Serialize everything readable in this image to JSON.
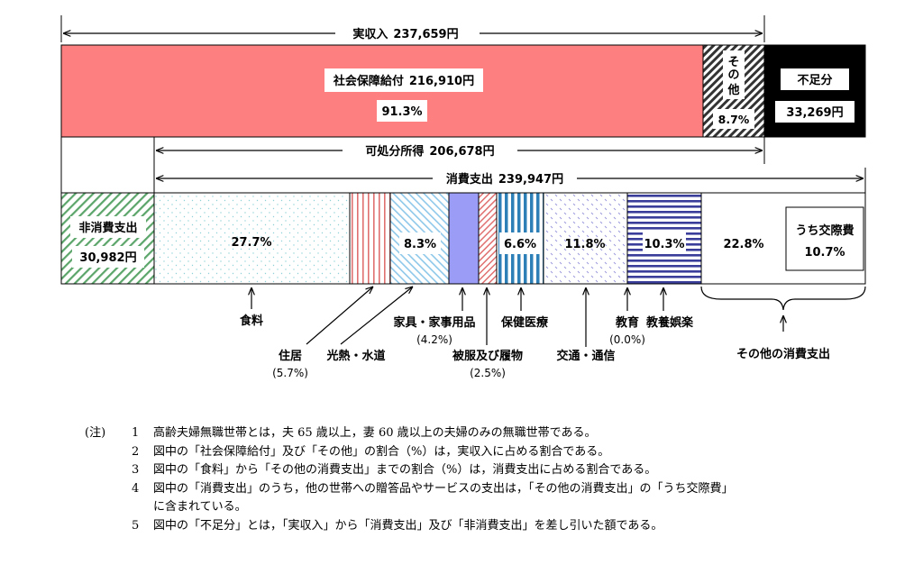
{
  "chart_data": {
    "type": "bar",
    "top_bar": {
      "income": {
        "label": "実収入",
        "value": "237,659円"
      },
      "segments": [
        {
          "key": "social",
          "label": "社会保障給付",
          "amount": "216,910円",
          "pct": "91.3%",
          "share": 0.913,
          "color": "#fe7f80"
        },
        {
          "key": "other",
          "label": "その他",
          "pct": "8.7%",
          "share": 0.087
        },
        {
          "key": "shortfall",
          "label": "不足分",
          "amount": "33,269円",
          "color": "#000000"
        }
      ],
      "disposable": {
        "label": "可処分所得",
        "value": "206,678円"
      }
    },
    "bottom_bar": {
      "consumption": {
        "label": "消費支出",
        "value": "239,947円"
      },
      "non_consumption": {
        "label": "非消費支出",
        "amount": "30,982円"
      },
      "categories": [
        {
          "key": "food",
          "label": "食料",
          "pct": "27.7%",
          "share": 0.277
        },
        {
          "key": "housing",
          "label": "住居",
          "pct": "(5.7%)",
          "share": 0.057
        },
        {
          "key": "utilities",
          "label": "光熱・水道",
          "pct": "8.3%",
          "share": 0.083
        },
        {
          "key": "furniture",
          "label": "家具・家事用品",
          "pct": "(4.2%)",
          "share": 0.042
        },
        {
          "key": "clothing",
          "label": "被服及び履物",
          "pct": "(2.5%)",
          "share": 0.025
        },
        {
          "key": "medical",
          "label": "保健医療",
          "pct": "6.6%",
          "share": 0.066
        },
        {
          "key": "transport",
          "label": "交通・通信",
          "pct": "11.8%",
          "share": 0.118
        },
        {
          "key": "education",
          "label": "教育",
          "pct": "(0.0%)",
          "share": 0.0
        },
        {
          "key": "culture",
          "label": "教養娯楽",
          "pct": "10.3%",
          "share": 0.103
        },
        {
          "key": "others",
          "label": "その他の消費支出",
          "pct": "22.8%",
          "share": 0.228
        }
      ],
      "social_expense": {
        "label": "うち交際費",
        "pct": "10.7%"
      }
    }
  },
  "notes": {
    "head": "(注)",
    "items": [
      {
        "num": "1",
        "lines": [
          "高齢夫婦無職世帯とは，夫 65 歳以上，妻 60 歳以上の夫婦のみの無職世帯である。"
        ]
      },
      {
        "num": "2",
        "lines": [
          "図中の「社会保障給付」及び「その他」の割合（%）は，実収入に占める割合である。"
        ]
      },
      {
        "num": "3",
        "lines": [
          "図中の「食料」から「その他の消費支出」までの割合（%）は，消費支出に占める割合である。"
        ]
      },
      {
        "num": "4",
        "lines": [
          "図中の「消費支出」のうち，他の世帯への贈答品やサービスの支出は，「その他の消費支出」の「うち交際費」",
          "に含まれている。"
        ]
      },
      {
        "num": "5",
        "lines": [
          "図中の「不足分」とは，「実収入」から「消費支出」及び「非消費支出」を差し引いた額である。"
        ]
      }
    ]
  }
}
